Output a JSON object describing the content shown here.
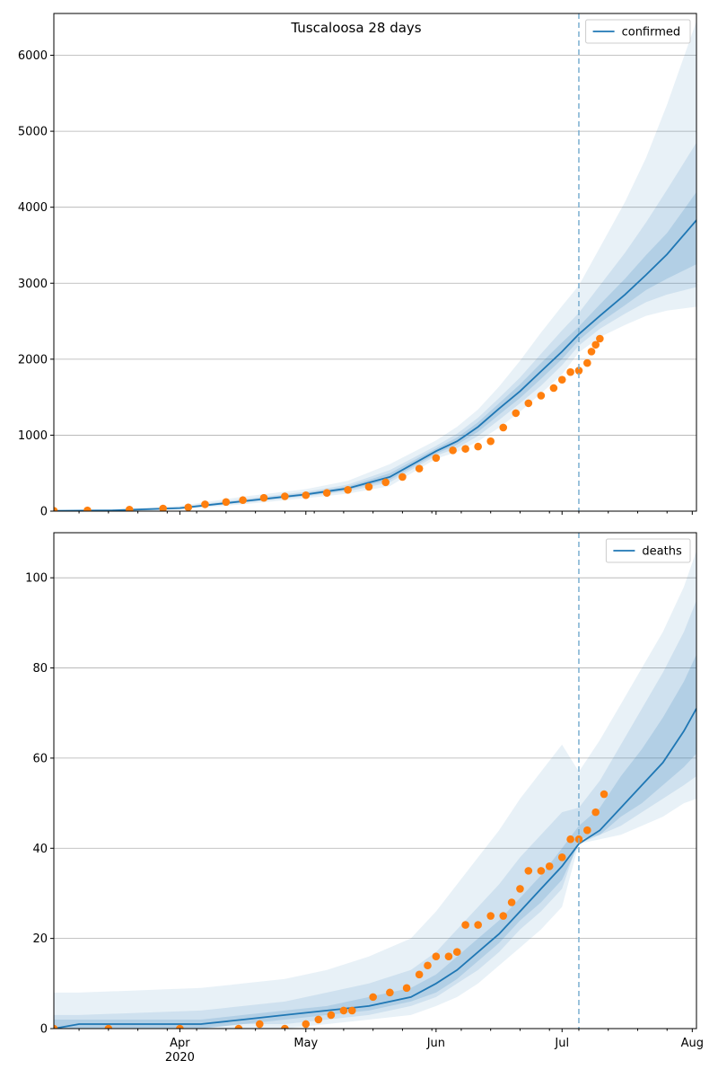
{
  "figure": {
    "title": "Tuscaloosa 28 days"
  },
  "colors": {
    "model_line": "#1f77b4",
    "observed_points": "#ff7f0e",
    "band_fill": "#1f77b4",
    "grid": "#b0b0b0",
    "forecast_line": "#7aaed0"
  },
  "chart_data": [
    {
      "type": "line",
      "name": "confirmed-panel",
      "x_type": "date",
      "xlim": [
        "2020-03-02",
        "2020-08-02"
      ],
      "ylim": [
        0,
        6550
      ],
      "yticks": [
        0,
        1000,
        2000,
        3000,
        4000,
        5000,
        6000
      ],
      "xticks": [
        {
          "date": "2020-04-01",
          "label": "Apr",
          "sublabel": "2020"
        },
        {
          "date": "2020-05-01",
          "label": "May",
          "sublabel": ""
        },
        {
          "date": "2020-06-01",
          "label": "Jun",
          "sublabel": ""
        },
        {
          "date": "2020-07-01",
          "label": "Jul",
          "sublabel": ""
        },
        {
          "date": "2020-08-01",
          "label": "Aug",
          "sublabel": ""
        }
      ],
      "grid": "horizontal",
      "forecast_start": "2020-07-05",
      "legend": {
        "placement": "top-right",
        "entries": [
          "confirmed"
        ]
      },
      "model": {
        "x": [
          "2020-03-02",
          "2020-03-16",
          "2020-04-01",
          "2020-04-16",
          "2020-05-01",
          "2020-05-11",
          "2020-05-21",
          "2020-06-01",
          "2020-06-06",
          "2020-06-11",
          "2020-06-16",
          "2020-06-21",
          "2020-06-26",
          "2020-07-01",
          "2020-07-05",
          "2020-07-10",
          "2020-07-16",
          "2020-07-21",
          "2020-07-26",
          "2020-08-02"
        ],
        "median": [
          5,
          10,
          40,
          130,
          220,
          300,
          450,
          790,
          920,
          1110,
          1350,
          1580,
          1840,
          2100,
          2330,
          2570,
          2850,
          3110,
          3380,
          3830
        ],
        "bands": [
          {
            "lower": [
              0,
              2,
              20,
              90,
              170,
              230,
              330,
              690,
              780,
              920,
              1100,
              1310,
              1550,
              1800,
              2090,
              2290,
              2450,
              2570,
              2640,
              2690
            ],
            "upper": [
              15,
              30,
              70,
              190,
              290,
              400,
              620,
              930,
              1110,
              1340,
              1640,
              1980,
              2350,
              2700,
              2970,
              3470,
              4070,
              4650,
              5350,
              6450
            ]
          },
          {
            "lower": [
              2,
              5,
              30,
              110,
              195,
              260,
              380,
              730,
              830,
              990,
              1200,
              1420,
              1650,
              1920,
              2180,
              2400,
              2600,
              2750,
              2850,
              2950
            ],
            "upper": [
              10,
              20,
              55,
              160,
              255,
              350,
              540,
              860,
              1020,
              1230,
              1490,
              1760,
              2070,
              2380,
              2610,
              2970,
              3400,
              3800,
              4230,
              4850
            ]
          },
          {
            "lower": [
              4,
              8,
              35,
              120,
              205,
              280,
              410,
              755,
              875,
              1045,
              1270,
              1490,
              1740,
              2000,
              2250,
              2480,
              2710,
              2910,
              3060,
              3250
            ],
            "upper": [
              7,
              14,
              47,
              145,
              240,
              325,
              500,
              825,
              970,
              1170,
              1420,
              1670,
              1950,
              2220,
              2430,
              2720,
              3060,
              3370,
              3660,
              4200
            ]
          }
        ]
      },
      "observed": {
        "x": [
          "2020-03-02",
          "2020-03-10",
          "2020-03-20",
          "2020-03-28",
          "2020-04-03",
          "2020-04-07",
          "2020-04-12",
          "2020-04-16",
          "2020-04-21",
          "2020-04-26",
          "2020-05-01",
          "2020-05-06",
          "2020-05-11",
          "2020-05-16",
          "2020-05-20",
          "2020-05-24",
          "2020-05-28",
          "2020-06-01",
          "2020-06-05",
          "2020-06-08",
          "2020-06-11",
          "2020-06-14",
          "2020-06-17",
          "2020-06-20",
          "2020-06-23",
          "2020-06-26",
          "2020-06-29",
          "2020-07-01",
          "2020-07-03",
          "2020-07-05",
          "2020-07-07",
          "2020-07-08",
          "2020-07-09",
          "2020-07-10"
        ],
        "y": [
          5,
          10,
          20,
          35,
          50,
          90,
          120,
          145,
          175,
          195,
          210,
          240,
          280,
          320,
          380,
          450,
          560,
          700,
          800,
          820,
          850,
          920,
          1100,
          1290,
          1420,
          1520,
          1620,
          1730,
          1830,
          1850,
          1950,
          2100,
          2190,
          2270
        ]
      }
    },
    {
      "type": "line",
      "name": "deaths-panel",
      "x_type": "date",
      "xlim": [
        "2020-03-02",
        "2020-08-02"
      ],
      "ylim": [
        0,
        110
      ],
      "yticks": [
        0,
        20,
        40,
        60,
        80,
        100
      ],
      "xticks": [
        {
          "date": "2020-04-01",
          "label": "Apr",
          "sublabel": "2020"
        },
        {
          "date": "2020-05-01",
          "label": "May",
          "sublabel": ""
        },
        {
          "date": "2020-06-01",
          "label": "Jun",
          "sublabel": ""
        },
        {
          "date": "2020-07-01",
          "label": "Jul",
          "sublabel": ""
        },
        {
          "date": "2020-08-01",
          "label": "Aug",
          "sublabel": ""
        }
      ],
      "grid": "horizontal",
      "forecast_start": "2020-07-05",
      "legend": {
        "placement": "top-right",
        "entries": [
          "deaths"
        ]
      },
      "model": {
        "x": [
          "2020-03-02",
          "2020-03-08",
          "2020-04-06",
          "2020-04-16",
          "2020-04-26",
          "2020-05-06",
          "2020-05-16",
          "2020-05-26",
          "2020-06-01",
          "2020-06-06",
          "2020-06-11",
          "2020-06-16",
          "2020-06-21",
          "2020-06-26",
          "2020-07-01",
          "2020-07-05",
          "2020-07-10",
          "2020-07-15",
          "2020-07-20",
          "2020-07-25",
          "2020-07-30",
          "2020-08-02"
        ],
        "median": [
          0,
          1,
          1,
          2,
          3,
          4,
          5,
          7,
          10,
          13,
          17,
          21,
          26,
          31,
          36,
          41,
          44,
          49,
          54,
          59,
          66,
          71
        ],
        "bands": [
          {
            "lower": [
              0,
              0,
              0,
              0,
              0,
              1,
              2,
              3,
              5,
              7,
              10,
              14,
              18,
              22,
              27,
              41,
              42,
              43,
              45,
              47,
              50,
              51
            ],
            "upper": [
              8,
              8,
              9,
              10,
              11,
              13,
              16,
              20,
              26,
              32,
              38,
              44,
              51,
              57,
              63,
              57,
              64,
              72,
              80,
              88,
              98,
              106
            ]
          },
          {
            "lower": [
              0,
              0,
              0,
              1,
              1,
              2,
              3,
              5,
              7,
              10,
              13,
              17,
              22,
              26,
              31,
              42,
              43,
              45,
              48,
              51,
              54,
              56
            ],
            "upper": [
              3,
              3,
              4,
              5,
              6,
              8,
              10,
              13,
              17,
              22,
              27,
              32,
              38,
              43,
              48,
              49,
              55,
              63,
              71,
              79,
              88,
              95
            ]
          },
          {
            "lower": [
              0,
              0,
              0,
              1,
              2,
              3,
              4,
              6,
              8,
              11,
              15,
              19,
              24,
              28,
              33,
              41,
              43,
              47,
              50,
              54,
              58,
              61
            ],
            "upper": [
              2,
              2,
              2,
              3,
              4,
              5,
              7,
              9,
              12,
              16,
              20,
              24,
              29,
              34,
              40,
              45,
              49,
              56,
              62,
              69,
              77,
              83
            ]
          }
        ]
      },
      "observed": {
        "x": [
          "2020-03-02",
          "2020-03-15",
          "2020-04-01",
          "2020-04-15",
          "2020-04-20",
          "2020-04-26",
          "2020-05-01",
          "2020-05-04",
          "2020-05-07",
          "2020-05-10",
          "2020-05-12",
          "2020-05-17",
          "2020-05-21",
          "2020-05-25",
          "2020-05-28",
          "2020-05-30",
          "2020-06-01",
          "2020-06-04",
          "2020-06-06",
          "2020-06-08",
          "2020-06-11",
          "2020-06-14",
          "2020-06-17",
          "2020-06-19",
          "2020-06-21",
          "2020-06-23",
          "2020-06-26",
          "2020-06-28",
          "2020-07-01",
          "2020-07-03",
          "2020-07-05",
          "2020-07-07",
          "2020-07-09",
          "2020-07-11"
        ],
        "y": [
          0,
          0,
          0,
          0,
          1,
          0,
          1,
          2,
          3,
          4,
          4,
          7,
          8,
          9,
          12,
          14,
          16,
          16,
          17,
          23,
          23,
          25,
          25,
          28,
          31,
          35,
          35,
          36,
          38,
          42,
          42,
          44,
          48,
          52
        ]
      }
    }
  ]
}
